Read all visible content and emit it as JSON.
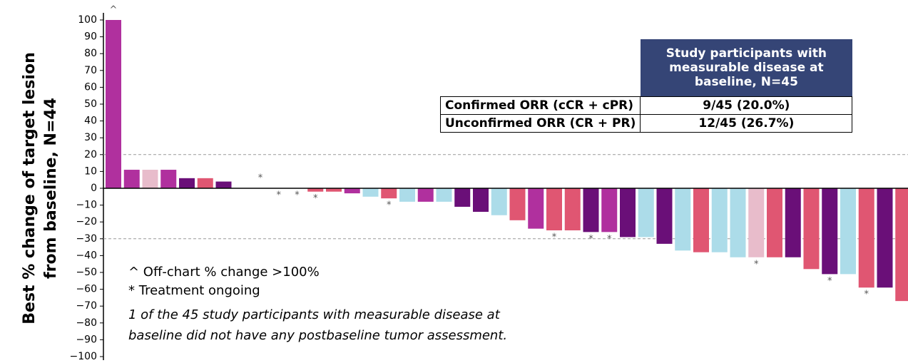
{
  "chart_data": {
    "type": "bar",
    "ylabel": [
      "Best % change of target  lesion",
      "from baseline, N=44"
    ],
    "values": [
      100,
      11,
      11,
      11,
      6,
      6,
      4,
      0,
      0,
      0,
      0,
      -2,
      -2,
      -3,
      -5,
      -6,
      -8,
      -8,
      -8,
      -11,
      -14,
      -16,
      -19,
      -24,
      -25,
      -25,
      -26,
      -26,
      -29,
      -29,
      -33,
      -37,
      -38,
      -38,
      -41,
      -41,
      -41,
      -41,
      -48,
      -51,
      -51,
      -59,
      -59,
      -67
    ],
    "colors": [
      "#b0309e",
      "#b0309e",
      "#e8bccb",
      "#b0309e",
      "#6a0f78",
      "#e05672",
      "#6a0f78",
      "#b0309e",
      "#b0309e",
      "#b0309e",
      "#b0309e",
      "#e05672",
      "#e05672",
      "#b0309e",
      "#acdce9",
      "#e05672",
      "#acdce9",
      "#b0309e",
      "#acdce9",
      "#6a0f78",
      "#6a0f78",
      "#acdce9",
      "#e05672",
      "#b0309e",
      "#e05672",
      "#e05672",
      "#6a0f78",
      "#b0309e",
      "#6a0f78",
      "#acdce9",
      "#6a0f78",
      "#acdce9",
      "#e05672",
      "#acdce9",
      "#acdce9",
      "#e8bccb",
      "#e05672",
      "#6a0f78",
      "#e05672",
      "#6a0f78",
      "#acdce9",
      "#e05672",
      "#6a0f78",
      "#e05672"
    ],
    "bar_labels": [
      "^",
      null,
      null,
      null,
      null,
      null,
      null,
      null,
      "*",
      "*",
      "*",
      "*",
      null,
      null,
      null,
      "*",
      null,
      null,
      null,
      null,
      null,
      null,
      null,
      null,
      "*",
      null,
      "*",
      "*",
      null,
      null,
      null,
      null,
      null,
      null,
      null,
      "*",
      null,
      null,
      null,
      "*",
      null,
      "*",
      null,
      null
    ],
    "ylim": [
      -100,
      100
    ],
    "yticks": [
      {
        "value": -100,
        "label": "−100"
      },
      {
        "value": -90,
        "label": "−90"
      },
      {
        "value": -80,
        "label": "−80"
      },
      {
        "value": -70,
        "label": "−70"
      },
      {
        "value": -60,
        "label": "−60"
      },
      {
        "value": -50,
        "label": "−50"
      },
      {
        "value": -40,
        "label": "−40"
      },
      {
        "value": -30,
        "label": "−30"
      },
      {
        "value": -20,
        "label": "−20"
      },
      {
        "value": -10,
        "label": "−10"
      },
      0,
      10,
      20,
      30,
      40,
      50,
      60,
      70,
      80,
      90,
      100
    ],
    "reference_lines": [
      20,
      -30
    ],
    "notes": [
      "^ Off-chart % change >100%",
      "* Treatment ongoing"
    ],
    "footnote": [
      "1 of the 45 study participants with measurable disease at",
      "baseline did not have any postbaseline tumor assessment."
    ],
    "table": {
      "header": "Study participants with measurable disease at baseline, N=45",
      "rows": [
        [
          "Confirmed ORR (cCR + cPR)",
          "9/45 (20.0%)"
        ],
        [
          "Unconfirmed ORR (CR + PR)",
          "12/45 (26.7%)"
        ]
      ]
    }
  }
}
